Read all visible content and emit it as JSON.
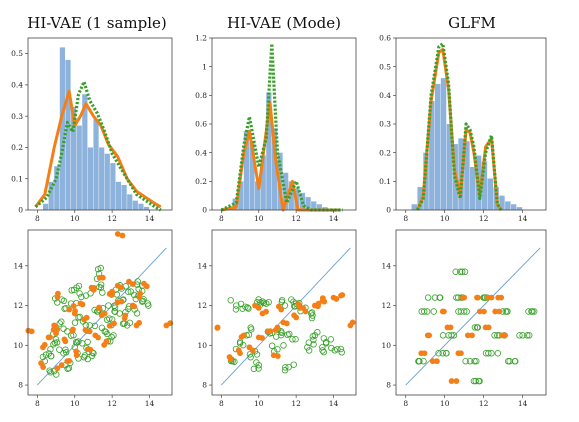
{
  "colors": {
    "hist": "#8db3dc",
    "orange": "#f57f17",
    "green": "#38a02a",
    "diag": "#6a9fd6"
  },
  "panels": [
    {
      "title": "HI-VAE (1 sample)"
    },
    {
      "title": "HI-VAE (Mode)"
    },
    {
      "title": "GLFM"
    }
  ],
  "chart_data": [
    {
      "type": "bar",
      "title": "HI-VAE (1 sample)",
      "xlim": [
        7.5,
        15.2
      ],
      "ylim": [
        0,
        0.55
      ],
      "xticks": [
        8,
        10,
        12,
        14
      ],
      "yticks": [
        0,
        0.1,
        0.2,
        0.3,
        0.4,
        0.5
      ],
      "yticklabels": [
        "0",
        "0.1",
        "0.2",
        "0.3",
        "0.4",
        "0.5"
      ],
      "bin_edges": [
        8.3,
        8.6,
        8.9,
        9.2,
        9.5,
        9.8,
        10.1,
        10.4,
        10.7,
        11.0,
        11.3,
        11.6,
        11.9,
        12.2,
        12.5,
        12.8,
        13.1,
        13.4,
        13.7,
        14.0
      ],
      "hist_values": [
        0.02,
        0.09,
        0.14,
        0.52,
        0.48,
        0.33,
        0.27,
        0.37,
        0.2,
        0.29,
        0.2,
        0.18,
        0.15,
        0.09,
        0.08,
        0.05,
        0.03,
        0.02,
        0.01
      ],
      "series": [
        {
          "color": "orange",
          "style": "solid",
          "x": [
            7.9,
            8.4,
            8.9,
            9.3,
            9.7,
            10.0,
            10.3,
            10.6,
            11.0,
            11.4,
            11.8,
            12.3,
            12.8,
            13.3,
            13.8,
            14.3,
            14.6
          ],
          "y": [
            0.01,
            0.05,
            0.2,
            0.3,
            0.38,
            0.27,
            0.3,
            0.34,
            0.3,
            0.27,
            0.21,
            0.17,
            0.1,
            0.06,
            0.04,
            0.02,
            0.01
          ]
        },
        {
          "color": "green",
          "style": "dotted",
          "x": [
            7.9,
            8.5,
            9.0,
            9.3,
            9.6,
            9.9,
            10.2,
            10.5,
            10.8,
            11.2,
            11.6,
            12.0,
            12.4,
            12.8,
            13.3,
            13.8,
            14.3,
            14.6
          ],
          "y": [
            0.01,
            0.04,
            0.1,
            0.18,
            0.28,
            0.25,
            0.37,
            0.41,
            0.35,
            0.31,
            0.25,
            0.18,
            0.14,
            0.1,
            0.05,
            0.03,
            0.01,
            0.0
          ]
        }
      ]
    },
    {
      "type": "bar",
      "title": "HI-VAE (Mode)",
      "xlim": [
        7.5,
        15.2
      ],
      "ylim": [
        0,
        1.2
      ],
      "xticks": [
        8,
        10,
        12,
        14
      ],
      "yticks": [
        0,
        0.2,
        0.4,
        0.6,
        0.8,
        1,
        1.2
      ],
      "yticklabels": [
        "0",
        "0.2",
        "0.4",
        "0.6",
        "0.8",
        "1",
        "1.2"
      ],
      "bin_edges": [
        8.3,
        8.6,
        8.9,
        9.2,
        9.5,
        9.8,
        10.1,
        10.4,
        10.7,
        11.0,
        11.3,
        11.6,
        11.9,
        12.2,
        12.5,
        12.8,
        13.1,
        13.4,
        13.7,
        14.0
      ],
      "hist_values": [
        0.02,
        0.08,
        0.2,
        0.55,
        0.48,
        0.2,
        0.38,
        0.82,
        0.57,
        0.4,
        0.26,
        0.2,
        0.15,
        0.12,
        0.09,
        0.06,
        0.04,
        0.02,
        0.01
      ],
      "series": [
        {
          "color": "orange",
          "style": "solid",
          "x": [
            8.0,
            8.8,
            9.2,
            9.5,
            10.0,
            10.3,
            10.6,
            10.9,
            11.3,
            11.8,
            12.1,
            12.5,
            13.0,
            13.6,
            14.3
          ],
          "y": [
            0.0,
            0.02,
            0.4,
            0.55,
            0.15,
            0.45,
            0.75,
            0.35,
            0.0,
            0.2,
            0.0,
            0.0,
            0.0,
            0.0,
            0.0
          ]
        },
        {
          "color": "green",
          "style": "dotted",
          "x": [
            8.0,
            8.8,
            9.2,
            9.5,
            10.0,
            10.4,
            10.7,
            11.0,
            11.5,
            12.0,
            12.4,
            12.8,
            13.3,
            13.8,
            14.5
          ],
          "y": [
            0.0,
            0.05,
            0.45,
            0.65,
            0.3,
            0.5,
            1.16,
            0.4,
            0.05,
            0.2,
            0.03,
            0.0,
            0.0,
            0.0,
            0.0
          ]
        }
      ]
    },
    {
      "type": "bar",
      "title": "GLFM",
      "xlim": [
        7.5,
        15.2
      ],
      "ylim": [
        0,
        0.6
      ],
      "xticks": [
        8,
        10,
        12,
        14
      ],
      "yticks": [
        0,
        0.1,
        0.2,
        0.3,
        0.4,
        0.5,
        0.6
      ],
      "yticklabels": [
        "0",
        "0.1",
        "0.2",
        "0.3",
        "0.4",
        "0.5",
        "0.6"
      ],
      "bin_edges": [
        8.3,
        8.6,
        8.9,
        9.2,
        9.5,
        9.8,
        10.1,
        10.4,
        10.7,
        11.0,
        11.3,
        11.6,
        11.9,
        12.2,
        12.5,
        12.8,
        13.1,
        13.4,
        13.7,
        14.0
      ],
      "hist_values": [
        0.02,
        0.08,
        0.2,
        0.38,
        0.44,
        0.46,
        0.3,
        0.23,
        0.25,
        0.24,
        0.15,
        0.19,
        0.17,
        0.11,
        0.08,
        0.05,
        0.03,
        0.02,
        0.01
      ],
      "series": [
        {
          "color": "orange",
          "style": "solid",
          "x": [
            8.6,
            8.9,
            9.3,
            9.7,
            9.9,
            10.2,
            10.5,
            10.8,
            11.1,
            11.3,
            11.5,
            11.8,
            12.1,
            12.4,
            12.7,
            12.9
          ],
          "y": [
            0.0,
            0.05,
            0.38,
            0.55,
            0.56,
            0.42,
            0.14,
            0.05,
            0.28,
            0.27,
            0.2,
            0.05,
            0.22,
            0.25,
            0.02,
            0.0
          ]
        },
        {
          "color": "green",
          "style": "dotted",
          "x": [
            8.6,
            8.9,
            9.3,
            9.7,
            9.9,
            10.2,
            10.5,
            10.8,
            11.1,
            11.3,
            11.5,
            11.8,
            12.1,
            12.4,
            12.7,
            12.9
          ],
          "y": [
            0.0,
            0.04,
            0.4,
            0.57,
            0.58,
            0.44,
            0.12,
            0.04,
            0.3,
            0.28,
            0.22,
            0.04,
            0.2,
            0.26,
            0.02,
            0.0
          ]
        }
      ]
    },
    {
      "type": "scatter",
      "xlim": [
        7.5,
        15.2
      ],
      "ylim": [
        7.5,
        15.8
      ],
      "xticks": [
        8,
        10,
        12,
        14
      ],
      "yticks": [
        8,
        10,
        12,
        14
      ],
      "diagonal": true,
      "orange_points": [
        [
          8.3,
          9.9
        ],
        [
          8.6,
          10.4
        ],
        [
          8.9,
          11.0
        ],
        [
          9.1,
          12.6
        ],
        [
          9.3,
          9.0
        ],
        [
          9.5,
          10.2
        ],
        [
          9.7,
          11.8
        ],
        [
          9.9,
          10.8
        ],
        [
          10.1,
          9.5
        ],
        [
          10.3,
          12.1
        ],
        [
          10.5,
          11.3
        ],
        [
          10.7,
          9.8
        ],
        [
          10.9,
          12.9
        ],
        [
          11.1,
          10.5
        ],
        [
          11.3,
          11.9
        ],
        [
          11.5,
          13.4
        ],
        [
          11.7,
          10.2
        ],
        [
          11.9,
          12.6
        ],
        [
          12.1,
          11.1
        ],
        [
          12.3,
          13.0
        ],
        [
          12.5,
          12.2
        ],
        [
          12.7,
          11.5
        ],
        [
          12.9,
          13.2
        ],
        [
          13.1,
          12.0
        ],
        [
          13.3,
          11.0
        ],
        [
          13.5,
          12.6
        ],
        [
          13.7,
          13.1
        ],
        [
          12.3,
          15.6
        ],
        [
          14.9,
          11.0
        ],
        [
          7.7,
          10.7
        ],
        [
          8.2,
          9.1
        ],
        [
          9.0,
          10.6
        ],
        [
          10.0,
          11.6
        ],
        [
          11.0,
          12.8
        ],
        [
          12.0,
          12.7
        ],
        [
          9.6,
          9.2
        ],
        [
          10.8,
          10.7
        ],
        [
          11.6,
          11.6
        ]
      ],
      "green_points": [
        [
          8.4,
          9.2
        ],
        [
          8.7,
          9.8
        ],
        [
          9.0,
          10.3
        ],
        [
          9.2,
          11.1
        ],
        [
          9.4,
          9.6
        ],
        [
          9.6,
          10.7
        ],
        [
          9.8,
          12.1
        ],
        [
          10.0,
          9.9
        ],
        [
          10.2,
          11.4
        ],
        [
          10.4,
          10.1
        ],
        [
          10.6,
          12.5
        ],
        [
          10.8,
          11.0
        ],
        [
          11.0,
          9.6
        ],
        [
          11.2,
          11.7
        ],
        [
          11.4,
          12.9
        ],
        [
          11.6,
          10.7
        ],
        [
          11.8,
          12.0
        ],
        [
          12.0,
          11.3
        ],
        [
          12.2,
          12.8
        ],
        [
          12.4,
          11.6
        ],
        [
          12.6,
          12.3
        ],
        [
          12.8,
          11.0
        ],
        [
          13.0,
          12.7
        ],
        [
          13.2,
          11.8
        ],
        [
          13.4,
          12.5
        ],
        [
          13.6,
          13.0
        ],
        [
          8.9,
          8.7
        ],
        [
          9.5,
          9.0
        ],
        [
          10.5,
          9.4
        ],
        [
          11.9,
          10.2
        ],
        [
          13.9,
          12.1
        ],
        [
          9.3,
          12.3
        ],
        [
          10.1,
          12.9
        ],
        [
          11.3,
          13.6
        ]
      ]
    },
    {
      "type": "scatter",
      "xlim": [
        7.5,
        15.2
      ],
      "ylim": [
        7.5,
        15.8
      ],
      "xticks": [
        8,
        10,
        12,
        14
      ],
      "yticks": [
        8,
        10,
        12,
        14
      ],
      "diagonal": true,
      "orange_points": [
        [
          8.5,
          9.3
        ],
        [
          9.0,
          9.6
        ],
        [
          9.5,
          9.9
        ],
        [
          10.0,
          10.4
        ],
        [
          10.5,
          10.7
        ],
        [
          11.0,
          10.9
        ],
        [
          11.5,
          11.1
        ],
        [
          12.0,
          11.4
        ],
        [
          12.5,
          11.7
        ],
        [
          13.0,
          12.0
        ],
        [
          13.5,
          12.2
        ],
        [
          14.0,
          12.4
        ],
        [
          14.4,
          12.5
        ],
        [
          9.2,
          10.5
        ],
        [
          10.2,
          11.6
        ],
        [
          11.2,
          11.8
        ],
        [
          12.2,
          11.9
        ],
        [
          13.2,
          12.1
        ],
        [
          7.8,
          10.9
        ],
        [
          14.9,
          11.0
        ],
        [
          10.8,
          9.5
        ],
        [
          9.8,
          12.0
        ]
      ],
      "green_points": [
        [
          8.6,
          9.2
        ],
        [
          9.0,
          10.1
        ],
        [
          9.4,
          11.9
        ],
        [
          9.8,
          9.7
        ],
        [
          10.2,
          12.2
        ],
        [
          10.6,
          10.6
        ],
        [
          11.0,
          9.8
        ],
        [
          11.4,
          12.0
        ],
        [
          11.8,
          10.3
        ],
        [
          12.2,
          11.9
        ],
        [
          12.6,
          9.9
        ],
        [
          13.0,
          10.5
        ],
        [
          13.4,
          9.9
        ],
        [
          8.8,
          12.0
        ],
        [
          9.6,
          10.8
        ],
        [
          10.4,
          12.1
        ],
        [
          11.2,
          10.7
        ],
        [
          12.0,
          12.1
        ],
        [
          12.8,
          11.6
        ],
        [
          13.6,
          10.1
        ],
        [
          14.2,
          9.8
        ],
        [
          10.0,
          9.0
        ],
        [
          11.6,
          8.9
        ]
      ]
    },
    {
      "type": "scatter",
      "xlim": [
        7.5,
        15.2
      ],
      "ylim": [
        7.5,
        15.8
      ],
      "xticks": [
        8,
        10,
        12,
        14
      ],
      "yticks": [
        8,
        10,
        12,
        14
      ],
      "diagonal": true,
      "levels": [
        9.2,
        9.6,
        10.5,
        10.9,
        11.7,
        12.4
      ],
      "orange_points": [
        [
          8.8,
          9.6
        ],
        [
          9.2,
          10.5
        ],
        [
          9.6,
          9.2
        ],
        [
          9.9,
          11.7
        ],
        [
          10.3,
          10.9
        ],
        [
          10.7,
          9.6
        ],
        [
          11.0,
          12.4
        ],
        [
          11.4,
          10.5
        ],
        [
          11.8,
          11.7
        ],
        [
          12.1,
          10.9
        ],
        [
          12.4,
          12.4
        ],
        [
          12.8,
          11.7
        ],
        [
          13.1,
          10.5
        ],
        [
          10.6,
          8.2
        ],
        [
          11.7,
          12.4
        ],
        [
          12.9,
          12.4
        ]
      ],
      "green_points": [
        [
          8.7,
          9.2
        ],
        [
          9.1,
          11.7
        ],
        [
          9.5,
          12.4
        ],
        [
          9.9,
          9.6
        ],
        [
          10.2,
          10.5
        ],
        [
          10.6,
          12.4
        ],
        [
          11.0,
          11.7
        ],
        [
          11.3,
          9.2
        ],
        [
          11.7,
          10.9
        ],
        [
          12.0,
          12.4
        ],
        [
          12.4,
          9.6
        ],
        [
          12.8,
          10.5
        ],
        [
          13.2,
          11.7
        ],
        [
          13.6,
          9.2
        ],
        [
          14.0,
          10.5
        ],
        [
          14.3,
          11.7
        ],
        [
          11.5,
          8.2
        ],
        [
          10.9,
          13.7
        ]
      ]
    }
  ]
}
